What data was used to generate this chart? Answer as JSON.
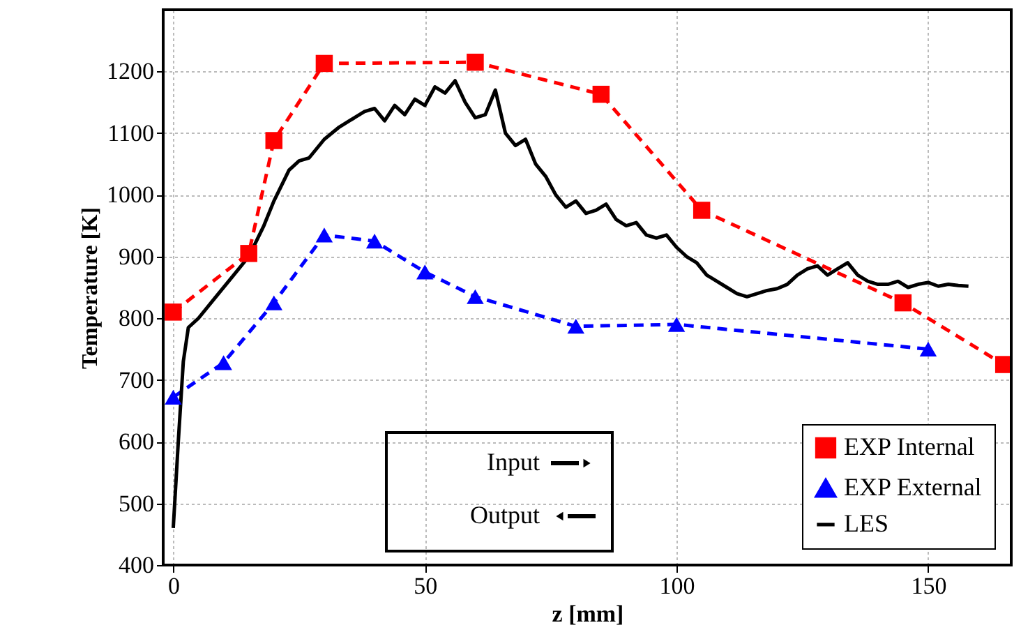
{
  "chart_data": {
    "type": "line",
    "xlabel": "z [mm]",
    "ylabel": "Temperature [K]",
    "xlim": [
      -2,
      166.5
    ],
    "ylim": [
      400,
      1300
    ],
    "xticks": [
      0,
      50,
      100,
      150
    ],
    "yticks": [
      400,
      500,
      600,
      700,
      800,
      900,
      1000,
      1100,
      1200
    ],
    "grid": true,
    "legend": "bottom right",
    "series": [
      {
        "name": "EXP Internal",
        "color": "#ff0000",
        "marker": "square",
        "line_style": "dashed",
        "x": [
          0,
          15,
          20,
          30,
          60,
          85,
          105,
          145,
          165
        ],
        "values": [
          810,
          905,
          1088,
          1213,
          1215,
          1163,
          975,
          825,
          725
        ]
      },
      {
        "name": "EXP External",
        "color": "#0000ff",
        "marker": "triangle",
        "line_style": "dashed",
        "x": [
          0,
          10,
          20,
          30,
          40,
          50,
          60,
          80,
          100,
          150
        ],
        "values": [
          672,
          728,
          825,
          935,
          925,
          875,
          835,
          787,
          790,
          750
        ]
      },
      {
        "name": "LES",
        "color": "#000000",
        "marker": "none",
        "line_style": "solid",
        "x": [
          0,
          1,
          2,
          3,
          5,
          8,
          12,
          15,
          18,
          20,
          23,
          25,
          27,
          30,
          33,
          35,
          38,
          40,
          42,
          44,
          46,
          48,
          50,
          52,
          54,
          56,
          58,
          60,
          62,
          64,
          66,
          68,
          70,
          72,
          74,
          76,
          78,
          80,
          82,
          84,
          86,
          88,
          90,
          92,
          94,
          96,
          98,
          100,
          102,
          104,
          106,
          108,
          110,
          112,
          114,
          116,
          118,
          120,
          122,
          124,
          126,
          128,
          130,
          132,
          134,
          136,
          138,
          140,
          142,
          144,
          146,
          148,
          150,
          152,
          154,
          156,
          158
        ],
        "values": [
          460,
          600,
          730,
          785,
          800,
          830,
          870,
          900,
          950,
          990,
          1040,
          1055,
          1060,
          1090,
          1110,
          1120,
          1135,
          1140,
          1120,
          1145,
          1130,
          1155,
          1145,
          1175,
          1165,
          1185,
          1150,
          1125,
          1130,
          1170,
          1100,
          1080,
          1090,
          1050,
          1030,
          1000,
          980,
          990,
          970,
          975,
          985,
          960,
          950,
          955,
          935,
          930,
          935,
          915,
          900,
          890,
          870,
          860,
          850,
          840,
          835,
          840,
          845,
          848,
          855,
          870,
          880,
          885,
          870,
          880,
          890,
          870,
          860,
          855,
          855,
          860,
          850,
          855,
          858,
          852,
          855,
          853,
          852
        ]
      }
    ],
    "annotations": [
      "Input",
      "Output"
    ]
  }
}
